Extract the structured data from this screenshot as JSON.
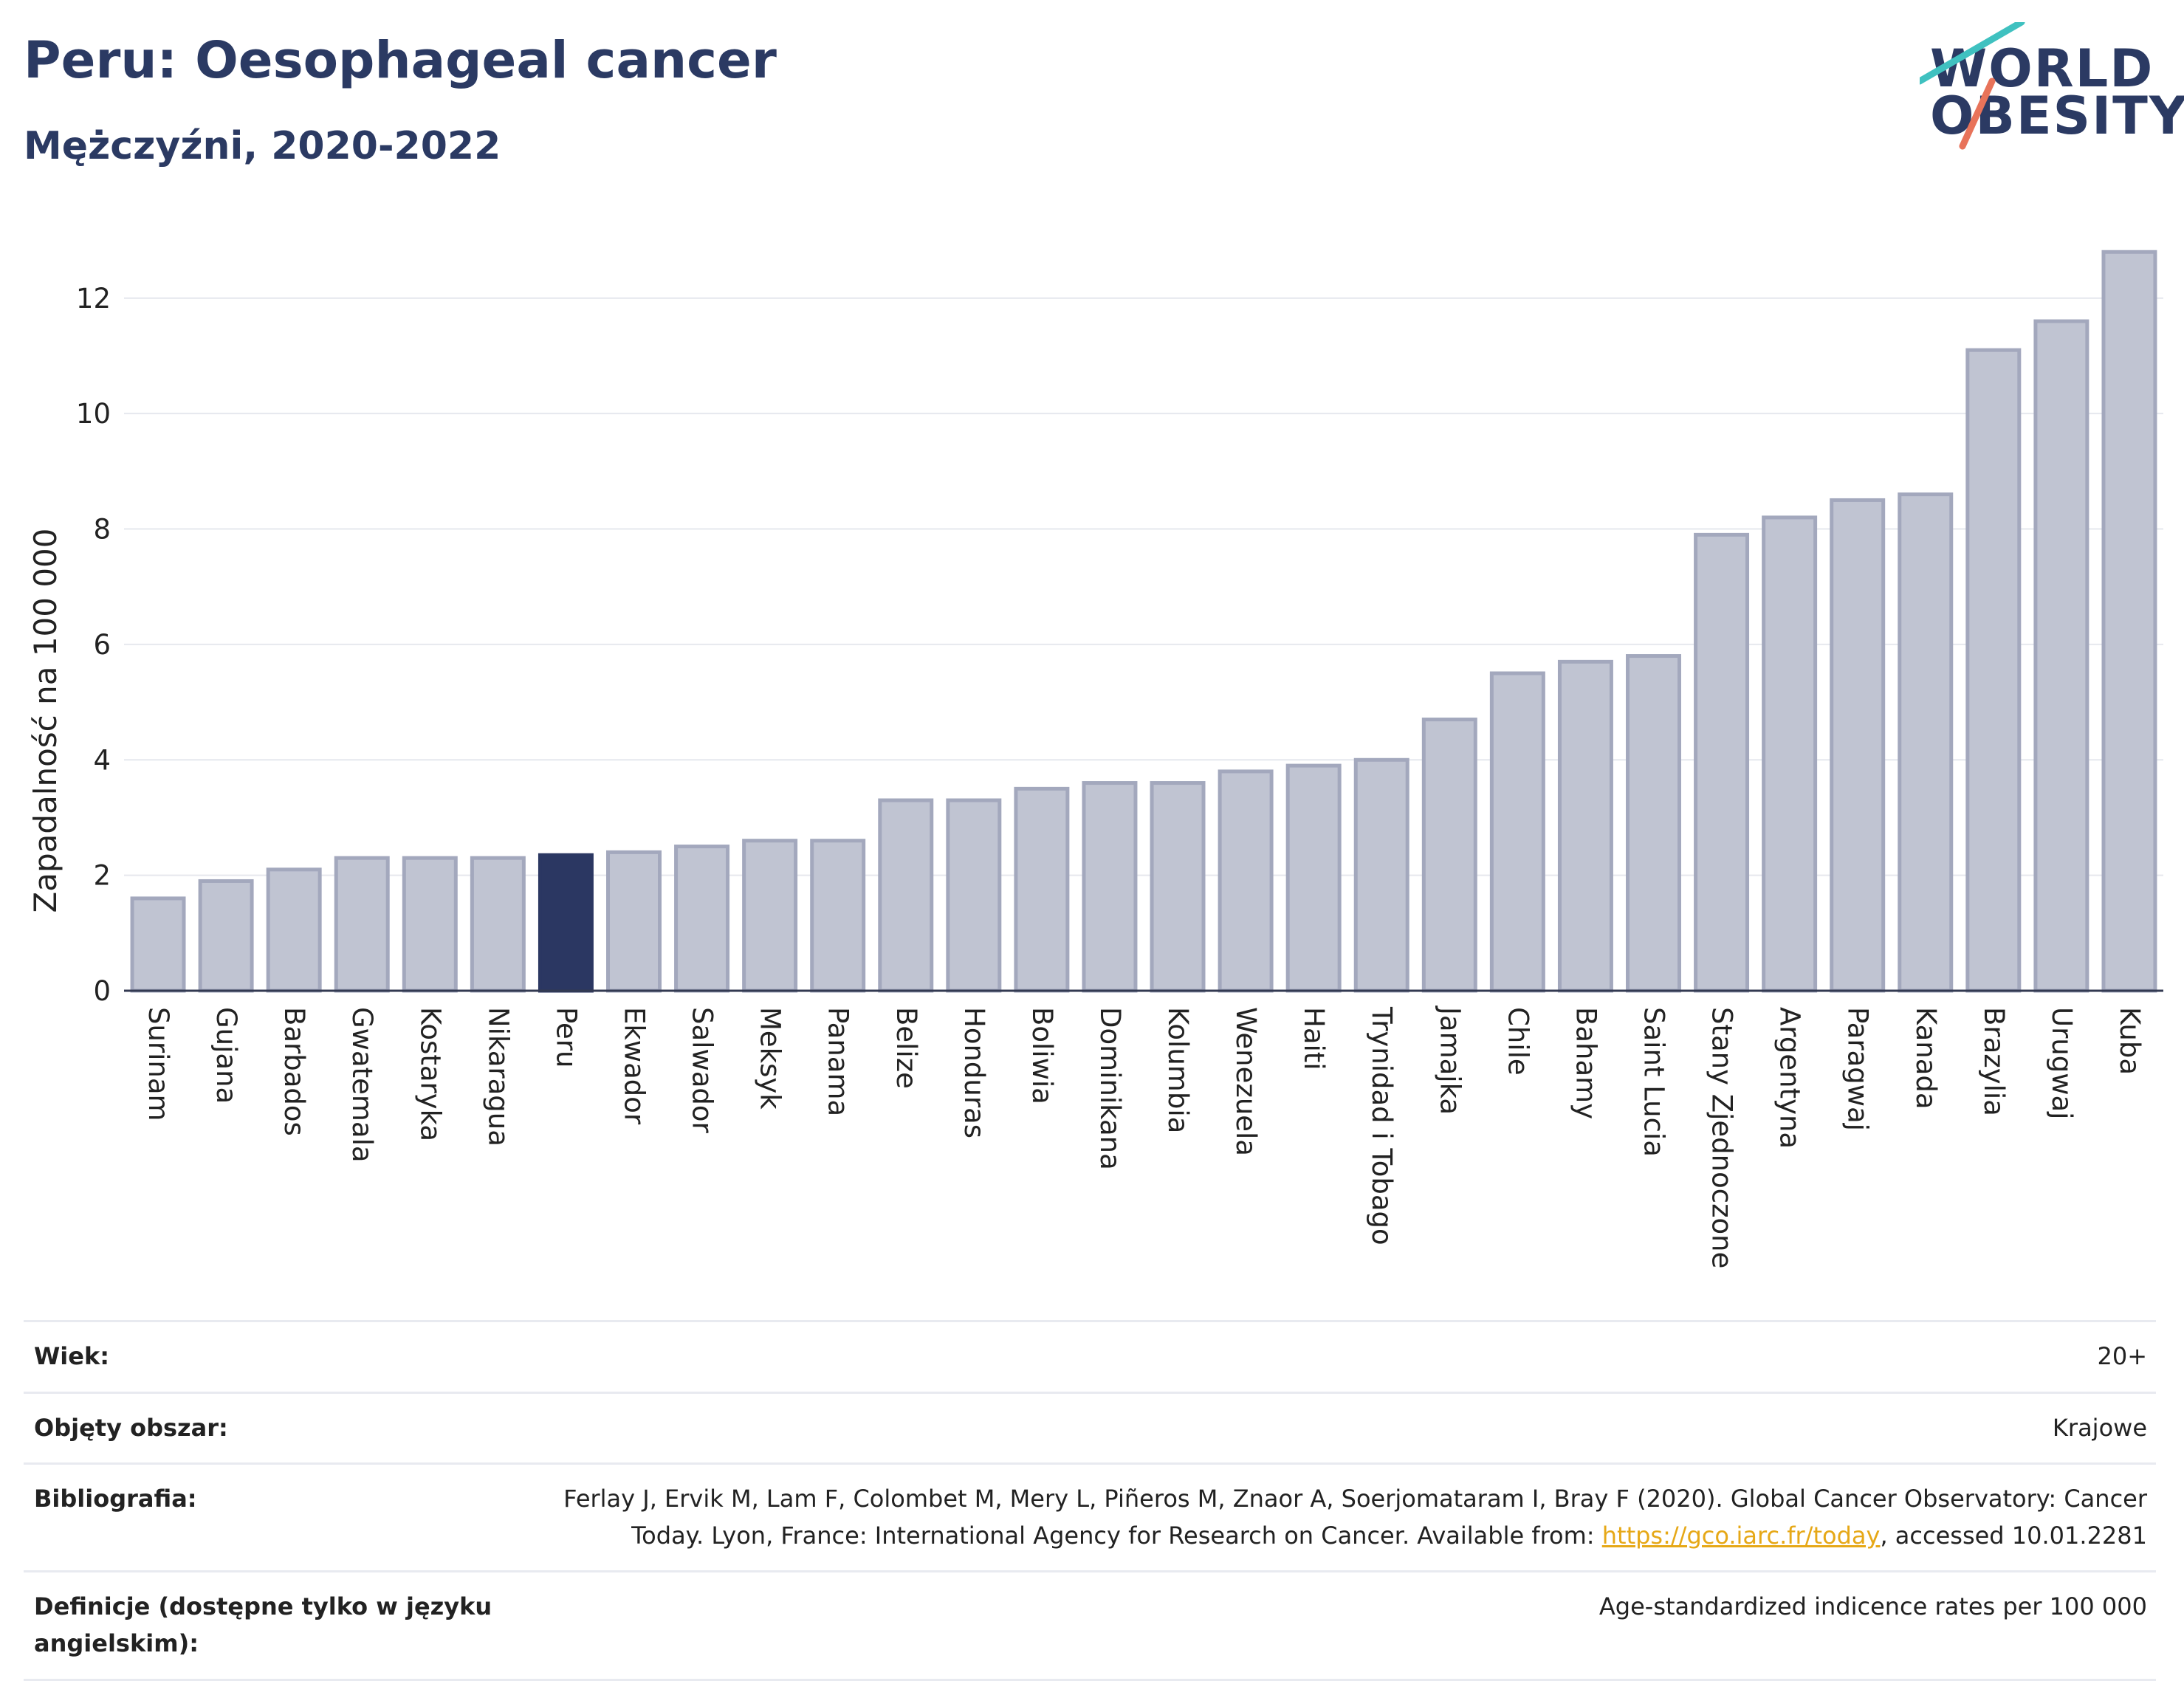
{
  "header": {
    "title": "Peru: Oesophageal cancer",
    "subtitle": "Mężczyźni, 2020-2022"
  },
  "logo": {
    "line1": "WORLD",
    "line2": "OBESITY",
    "colors": {
      "text": "#2b3a63",
      "slash_top": "#3fc1c0",
      "slash_bottom": "#e8735a"
    }
  },
  "chart_data": {
    "type": "bar",
    "ylabel": "Zapadalność na 100 000",
    "ylim": [
      0,
      13.2
    ],
    "yticks": [
      0,
      2,
      4,
      6,
      8,
      10,
      12
    ],
    "grid": true,
    "highlight": "Peru",
    "colors": {
      "bar": "#c0c4d2",
      "bar_border": "#a3a8bd",
      "highlight": "#2b3762"
    },
    "categories": [
      "Surinam",
      "Gujana",
      "Barbados",
      "Gwatemala",
      "Kostaryka",
      "Nikaragua",
      "Peru",
      "Ekwador",
      "Salwador",
      "Meksyk",
      "Panama",
      "Belize",
      "Honduras",
      "Boliwia",
      "Dominikana",
      "Kolumbia",
      "Wenezuela",
      "Haiti",
      "Trynidad i Tobago",
      "Jamajka",
      "Chile",
      "Bahamy",
      "Saint Lucia",
      "Stany Zjednoczone",
      "Argentyna",
      "Paragwaj",
      "Kanada",
      "Brazylia",
      "Urugwaj",
      "Kuba"
    ],
    "values": [
      1.6,
      1.9,
      2.1,
      2.3,
      2.3,
      2.3,
      2.35,
      2.4,
      2.5,
      2.6,
      2.6,
      3.3,
      3.3,
      3.5,
      3.6,
      3.6,
      3.8,
      3.9,
      4.0,
      4.7,
      5.5,
      5.7,
      5.8,
      7.9,
      8.2,
      8.5,
      8.6,
      11.1,
      11.6,
      12.8
    ]
  },
  "info": {
    "age_label": "Wiek:",
    "age_value": "20+",
    "coverage_label": "Objęty obszar:",
    "coverage_value": "Krajowe",
    "biblio_label": "Bibliografia:",
    "biblio_line1": "Ferlay J, Ervik M, Lam F, Colombet M, Mery L, Piñeros M, Znaor A, Soerjomataram I, Bray F (2020). Global Cancer Observatory: Cancer",
    "biblio_line2_pre": "Today. Lyon, France: International Agency for Research on Cancer. Available from: ",
    "biblio_link": "https://gco.iarc.fr/today",
    "biblio_line2_post": ", accessed 10.01.2281",
    "def_label": "Definicje (dostępne tylko w języku angielskim):",
    "def_value": "Age-standardized indicence rates per 100 000"
  }
}
